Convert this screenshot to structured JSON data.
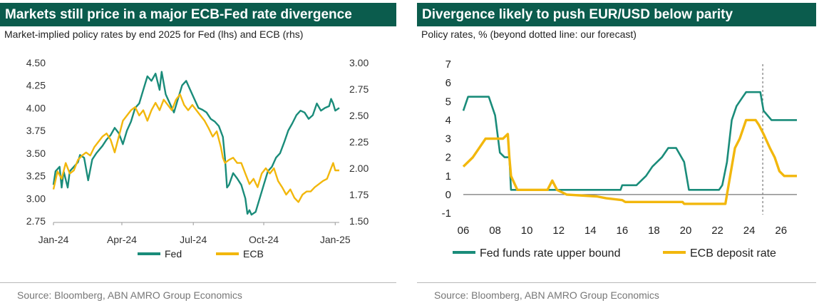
{
  "chart_data": [
    {
      "type": "line",
      "title": "Markets still price in a major ECB-Fed rate divergence",
      "subtitle": "Market-implied policy rates by end 2025 for Fed (lhs) and ECB (rhs)",
      "source": "Source: Bloomberg, ABN AMRO Group Economics",
      "x_ticks": [
        "Jan-24",
        "Apr-24",
        "Jul-24",
        "Oct-24",
        "Jan-25"
      ],
      "ylim_left": [
        2.75,
        4.5
      ],
      "ylim_right": [
        1.5,
        3.0
      ],
      "y_ticks_left": [
        "4.50",
        "4.25",
        "4.00",
        "3.75",
        "3.50",
        "3.25",
        "3.00",
        "2.75"
      ],
      "y_ticks_right": [
        "3.00",
        "2.75",
        "2.50",
        "2.25",
        "2.00",
        "1.75",
        "1.50"
      ],
      "legend": "bottom-center",
      "colors": {
        "Fed": "#1a8c7a",
        "ECB": "#f2b70c"
      },
      "series": [
        {
          "name": "Fed",
          "axis": "left",
          "points": [
            [
              0,
              3.15
            ],
            [
              1,
              3.3
            ],
            [
              3,
              3.35
            ],
            [
              4,
              3.12
            ],
            [
              5,
              3.3
            ],
            [
              7,
              3.12
            ],
            [
              8,
              3.3
            ],
            [
              10,
              3.35
            ],
            [
              12,
              3.4
            ],
            [
              13,
              3.48
            ],
            [
              15,
              3.45
            ],
            [
              17,
              3.2
            ],
            [
              19,
              3.43
            ],
            [
              21,
              3.5
            ],
            [
              24,
              3.58
            ],
            [
              26,
              3.65
            ],
            [
              28,
              3.7
            ],
            [
              30,
              3.78
            ],
            [
              32,
              3.72
            ],
            [
              34,
              3.6
            ],
            [
              36,
              3.75
            ],
            [
              38,
              3.85
            ],
            [
              40,
              4.0
            ],
            [
              42,
              4.05
            ],
            [
              44,
              4.2
            ],
            [
              46,
              4.35
            ],
            [
              48,
              4.3
            ],
            [
              50,
              4.38
            ],
            [
              52,
              4.2
            ],
            [
              53,
              4.4
            ],
            [
              55,
              4.15
            ],
            [
              57,
              4.05
            ],
            [
              59,
              3.95
            ],
            [
              61,
              4.1
            ],
            [
              63,
              4.25
            ],
            [
              65,
              4.3
            ],
            [
              67,
              4.2
            ],
            [
              69,
              4.1
            ],
            [
              71,
              4.0
            ],
            [
              73,
              3.98
            ],
            [
              75,
              3.95
            ],
            [
              77,
              3.88
            ],
            [
              79,
              3.85
            ],
            [
              81,
              3.8
            ],
            [
              83,
              3.68
            ],
            [
              84,
              3.45
            ],
            [
              85,
              3.12
            ],
            [
              86,
              3.15
            ],
            [
              88,
              3.28
            ],
            [
              90,
              3.22
            ],
            [
              92,
              3.15
            ],
            [
              94,
              3.0
            ],
            [
              95,
              2.83
            ],
            [
              96,
              2.87
            ],
            [
              97,
              2.82
            ],
            [
              99,
              2.85
            ],
            [
              101,
              3.0
            ],
            [
              103,
              3.15
            ],
            [
              105,
              3.3
            ],
            [
              107,
              3.35
            ],
            [
              109,
              3.45
            ],
            [
              111,
              3.5
            ],
            [
              113,
              3.62
            ],
            [
              115,
              3.75
            ],
            [
              117,
              3.83
            ],
            [
              119,
              3.92
            ],
            [
              121,
              3.97
            ],
            [
              123,
              3.95
            ],
            [
              125,
              3.88
            ],
            [
              127,
              3.92
            ],
            [
              129,
              4.05
            ],
            [
              131,
              3.97
            ],
            [
              133,
              4.0
            ],
            [
              135,
              4.02
            ],
            [
              136,
              4.1
            ],
            [
              137,
              4.05
            ],
            [
              138,
              3.97
            ],
            [
              140,
              4.0
            ]
          ]
        },
        {
          "name": "ECB",
          "axis": "right",
          "points": [
            [
              0,
              1.8
            ],
            [
              2,
              1.97
            ],
            [
              4,
              1.9
            ],
            [
              6,
              2.05
            ],
            [
              8,
              1.95
            ],
            [
              10,
              1.98
            ],
            [
              12,
              2.08
            ],
            [
              14,
              2.12
            ],
            [
              16,
              2.15
            ],
            [
              18,
              2.12
            ],
            [
              20,
              2.2
            ],
            [
              22,
              2.25
            ],
            [
              24,
              2.3
            ],
            [
              26,
              2.33
            ],
            [
              28,
              2.27
            ],
            [
              30,
              2.15
            ],
            [
              32,
              2.3
            ],
            [
              34,
              2.45
            ],
            [
              36,
              2.5
            ],
            [
              38,
              2.55
            ],
            [
              40,
              2.58
            ],
            [
              42,
              2.5
            ],
            [
              44,
              2.55
            ],
            [
              46,
              2.45
            ],
            [
              48,
              2.55
            ],
            [
              50,
              2.62
            ],
            [
              52,
              2.55
            ],
            [
              54,
              2.65
            ],
            [
              56,
              2.6
            ],
            [
              58,
              2.55
            ],
            [
              60,
              2.65
            ],
            [
              62,
              2.7
            ],
            [
              64,
              2.6
            ],
            [
              66,
              2.55
            ],
            [
              68,
              2.6
            ],
            [
              70,
              2.55
            ],
            [
              72,
              2.5
            ],
            [
              74,
              2.45
            ],
            [
              76,
              2.38
            ],
            [
              78,
              2.3
            ],
            [
              80,
              2.35
            ],
            [
              82,
              2.2
            ],
            [
              83,
              2.1
            ],
            [
              84,
              2.05
            ],
            [
              86,
              2.08
            ],
            [
              88,
              2.1
            ],
            [
              90,
              2.05
            ],
            [
              92,
              2.05
            ],
            [
              94,
              1.95
            ],
            [
              96,
              1.85
            ],
            [
              98,
              1.9
            ],
            [
              100,
              1.82
            ],
            [
              102,
              1.95
            ],
            [
              104,
              2.0
            ],
            [
              106,
              1.95
            ],
            [
              108,
              2.0
            ],
            [
              110,
              1.88
            ],
            [
              112,
              1.82
            ],
            [
              114,
              1.75
            ],
            [
              116,
              1.8
            ],
            [
              118,
              1.72
            ],
            [
              120,
              1.68
            ],
            [
              122,
              1.75
            ],
            [
              124,
              1.78
            ],
            [
              126,
              1.78
            ],
            [
              128,
              1.82
            ],
            [
              130,
              1.85
            ],
            [
              132,
              1.88
            ],
            [
              134,
              1.9
            ],
            [
              136,
              2.0
            ],
            [
              137,
              2.05
            ],
            [
              138,
              1.98
            ],
            [
              140,
              1.98
            ]
          ]
        }
      ]
    },
    {
      "type": "line",
      "title": "Divergence likely to push EUR/USD below parity",
      "subtitle": "Policy rates, % (beyond dotted line: our forecast)",
      "source": "Source: Bloomberg, ABN AMRO Group Economics",
      "xlim": [
        2006,
        2027
      ],
      "ylim": [
        -1,
        7
      ],
      "x_ticks": [
        "06",
        "08",
        "10",
        "12",
        "14",
        "16",
        "18",
        "20",
        "22",
        "24",
        "26"
      ],
      "y_ticks": [
        "7",
        "6",
        "5",
        "4",
        "3",
        "2",
        "1",
        "0",
        "-1"
      ],
      "forecast_start": 2024.85,
      "legend": "bottom-left",
      "colors": {
        "Fed funds rate upper bound": "#1a8c7a",
        "ECB deposit rate": "#f2b70c"
      },
      "series": [
        {
          "name": "Fed funds rate upper bound",
          "points": [
            [
              2006,
              4.5
            ],
            [
              2006.3,
              5.25
            ],
            [
              2007.6,
              5.25
            ],
            [
              2008.0,
              4.25
            ],
            [
              2008.3,
              2.25
            ],
            [
              2008.6,
              2.0
            ],
            [
              2008.9,
              2.0
            ],
            [
              2009.0,
              0.25
            ],
            [
              2015.9,
              0.25
            ],
            [
              2016.0,
              0.5
            ],
            [
              2016.9,
              0.5
            ],
            [
              2017.5,
              1.0
            ],
            [
              2017.9,
              1.5
            ],
            [
              2018.5,
              2.0
            ],
            [
              2018.9,
              2.5
            ],
            [
              2019.4,
              2.5
            ],
            [
              2019.9,
              1.75
            ],
            [
              2020.2,
              0.25
            ],
            [
              2022.1,
              0.25
            ],
            [
              2022.3,
              0.5
            ],
            [
              2022.6,
              1.75
            ],
            [
              2022.9,
              4.0
            ],
            [
              2023.2,
              4.75
            ],
            [
              2023.6,
              5.25
            ],
            [
              2023.8,
              5.5
            ],
            [
              2024.7,
              5.5
            ],
            [
              2024.9,
              4.5
            ],
            [
              2025.4,
              4.0
            ],
            [
              2027.0,
              4.0
            ]
          ]
        },
        {
          "name": "ECB deposit rate",
          "points": [
            [
              2006,
              1.5
            ],
            [
              2006.6,
              2.0
            ],
            [
              2007.0,
              2.5
            ],
            [
              2007.4,
              3.0
            ],
            [
              2008.5,
              3.0
            ],
            [
              2008.8,
              3.25
            ],
            [
              2008.9,
              2.0
            ],
            [
              2009.0,
              1.0
            ],
            [
              2009.4,
              0.25
            ],
            [
              2011.3,
              0.25
            ],
            [
              2011.6,
              0.75
            ],
            [
              2011.9,
              0.25
            ],
            [
              2012.5,
              0.0
            ],
            [
              2014.4,
              -0.1
            ],
            [
              2015.0,
              -0.2
            ],
            [
              2016.0,
              -0.3
            ],
            [
              2016.2,
              -0.4
            ],
            [
              2019.8,
              -0.4
            ],
            [
              2019.9,
              -0.5
            ],
            [
              2022.5,
              -0.5
            ],
            [
              2022.6,
              0.0
            ],
            [
              2022.9,
              1.5
            ],
            [
              2023.1,
              2.5
            ],
            [
              2023.4,
              3.0
            ],
            [
              2023.8,
              4.0
            ],
            [
              2024.4,
              4.0
            ],
            [
              2024.6,
              3.75
            ],
            [
              2024.9,
              3.25
            ],
            [
              2025.3,
              2.5
            ],
            [
              2025.6,
              2.0
            ],
            [
              2025.9,
              1.25
            ],
            [
              2026.2,
              1.0
            ],
            [
              2027.0,
              1.0
            ]
          ]
        }
      ]
    }
  ]
}
